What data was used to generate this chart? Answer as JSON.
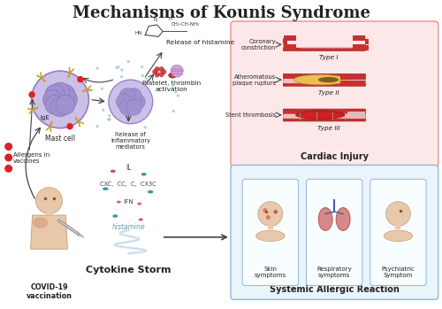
{
  "title": "Mechanisms of Kounis Syndrome",
  "title_fontsize": 13,
  "title_fontweight": "bold",
  "bg_color": "#ffffff",
  "cardiac_box_color": "#fce8e8",
  "cardiac_box_edge": "#e89090",
  "allergic_box_color": "#eaf4fb",
  "allergic_box_edge": "#90b8d8",
  "cardiac_title": "Cardiac Injury",
  "allergic_title": "Systemic Allergic Reaction",
  "cardiac_types": [
    "Coronary\nconstriction",
    "Atheromatous\nplaque rupture",
    "Stent thrombosis"
  ],
  "cardiac_labels": [
    "Type I",
    "Type II",
    "Type III"
  ],
  "allergic_symptoms": [
    "Skin\nsymptoms",
    "Respiratory\nsymptoms",
    "Psychiatric\nSymptom"
  ],
  "cytokine_label": "Cytokine Storm",
  "histamine_release_label": "Release of histamine",
  "platelet_label": "Platelet, thrombin\nactivation",
  "mast_cell_label": "Mast cell",
  "ige_label": "IgE",
  "release_label": "Release of\ninflammatory\nmediators",
  "covid_label": "COVID-19\nvaccination",
  "allergens_label": "Allergens in\nvaccines",
  "mast_color": "#c8b8e8",
  "mast_edge": "#9878c8",
  "nucleus_color": "#a090d0",
  "text_color": "#222222",
  "arrow_color": "#444444",
  "il_color": "#cc3333",
  "teal_color": "#118888",
  "pink_color": "#cc7799",
  "cytokine_bg": "#c8dde8"
}
